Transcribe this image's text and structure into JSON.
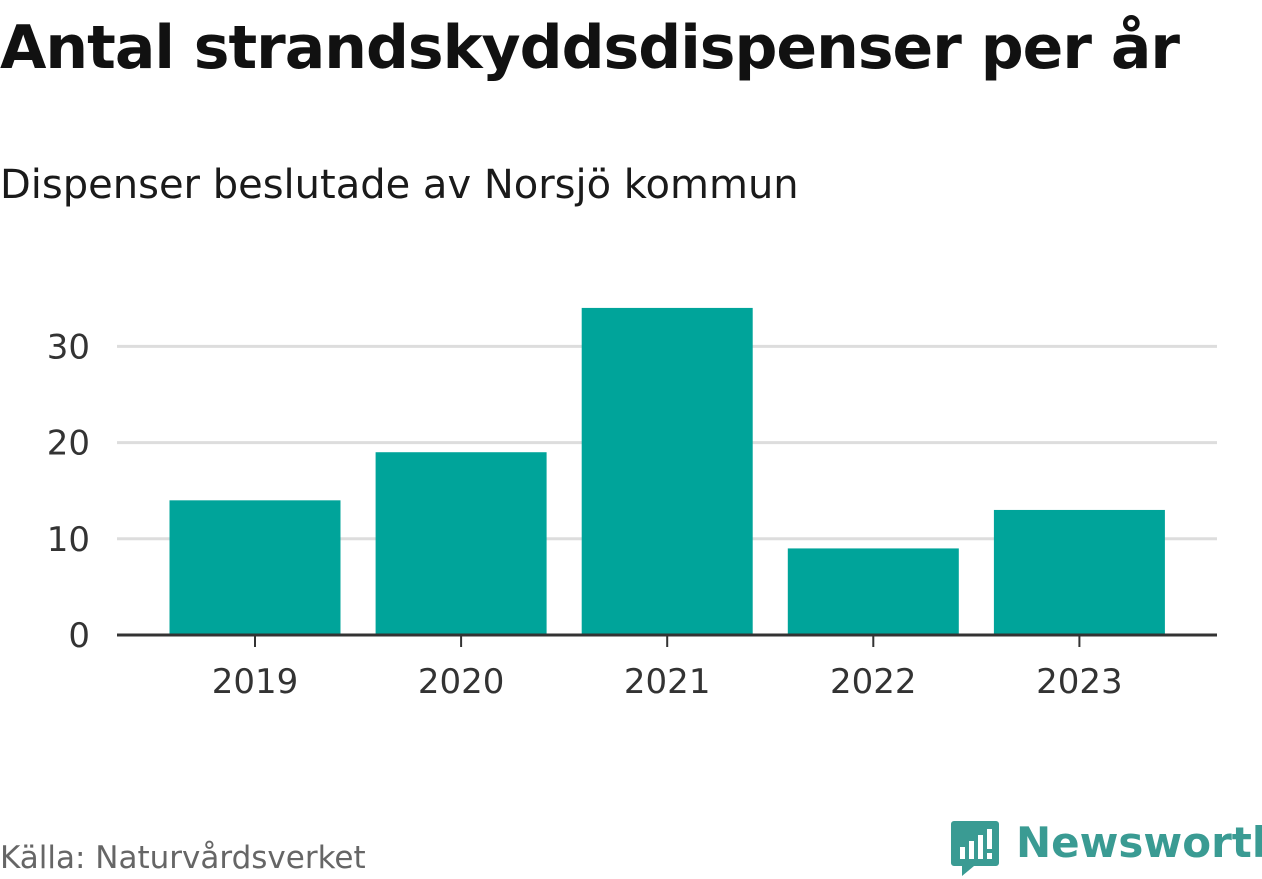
{
  "header": {
    "title": "Antal strandskyddsdispenser per år",
    "subtitle": "Dispenser beslutade av Norsjö kommun"
  },
  "footer": {
    "source": "Källa: Naturvårdsverket",
    "brand": "Newsworthy",
    "brand_icon": "newsworthy-logo-icon"
  },
  "colors": {
    "bar": "#00a49a",
    "grid": "#dddddd",
    "axis": "#333333",
    "brand": "#3a9b93"
  },
  "chart_data": {
    "type": "bar",
    "title": "Antal strandskyddsdispenser per år",
    "subtitle": "Dispenser beslutade av Norsjö kommun",
    "categories": [
      "2019",
      "2020",
      "2021",
      "2022",
      "2023"
    ],
    "values": [
      14,
      19,
      34,
      9,
      13
    ],
    "xlabel": "",
    "ylabel": "",
    "ylim": [
      0,
      35
    ],
    "yticks": [
      0,
      10,
      20,
      30
    ],
    "grid": true,
    "legend": "none"
  }
}
